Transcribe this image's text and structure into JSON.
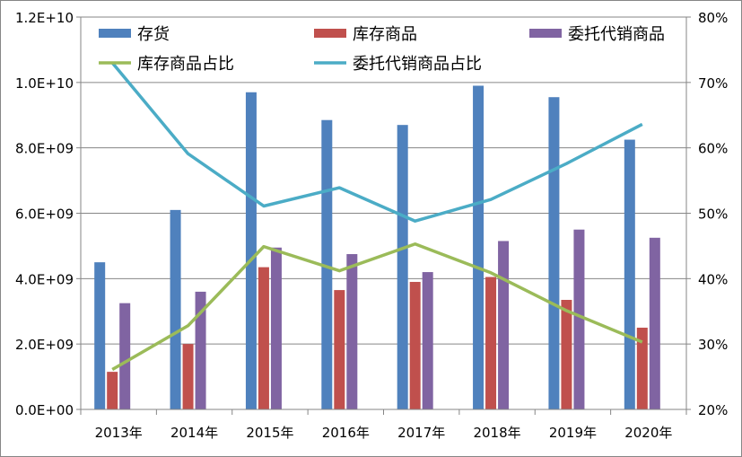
{
  "chart_data": {
    "type": "bar",
    "categories": [
      "2013年",
      "2014年",
      "2015年",
      "2016年",
      "2017年",
      "2018年",
      "2019年",
      "2020年"
    ],
    "series": [
      {
        "name": "存货",
        "type": "bar",
        "axis": "left",
        "color": "#4F81BD",
        "values": [
          4500000000.0,
          6100000000.0,
          9700000000.0,
          8850000000.0,
          8700000000.0,
          9900000000.0,
          9550000000.0,
          8250000000.0
        ]
      },
      {
        "name": "库存商品",
        "type": "bar",
        "axis": "left",
        "color": "#C0504D",
        "values": [
          1150000000.0,
          2000000000.0,
          4350000000.0,
          3650000000.0,
          3900000000.0,
          4050000000.0,
          3350000000.0,
          2500000000.0
        ]
      },
      {
        "name": "委托代销商品",
        "type": "bar",
        "axis": "left",
        "color": "#8064A2",
        "values": [
          3250000000.0,
          3600000000.0,
          4950000000.0,
          4750000000.0,
          4200000000.0,
          5150000000.0,
          5500000000.0,
          5250000000.0
        ]
      },
      {
        "name": "库存商品占比",
        "type": "line",
        "axis": "right",
        "color": "#9BBB59",
        "values": [
          0.261,
          0.328,
          0.449,
          0.412,
          0.453,
          0.409,
          0.351,
          0.303
        ]
      },
      {
        "name": "委托代销商品占比",
        "type": "line",
        "axis": "right",
        "color": "#4BACC6",
        "values": [
          0.73,
          0.591,
          0.511,
          0.539,
          0.488,
          0.521,
          0.576,
          0.636
        ]
      }
    ],
    "yAxisLeft": {
      "min": 0,
      "max": 12000000000.0,
      "ticks": [
        "0.0E+00",
        "2.0E+09",
        "4.0E+09",
        "6.0E+09",
        "8.0E+09",
        "1.0E+10",
        "1.2E+10"
      ]
    },
    "yAxisRight": {
      "min": 0.2,
      "max": 0.8,
      "ticks": [
        "20%",
        "30%",
        "40%",
        "50%",
        "60%",
        "70%",
        "80%"
      ]
    },
    "grid": "horizontal",
    "legend": "top"
  }
}
